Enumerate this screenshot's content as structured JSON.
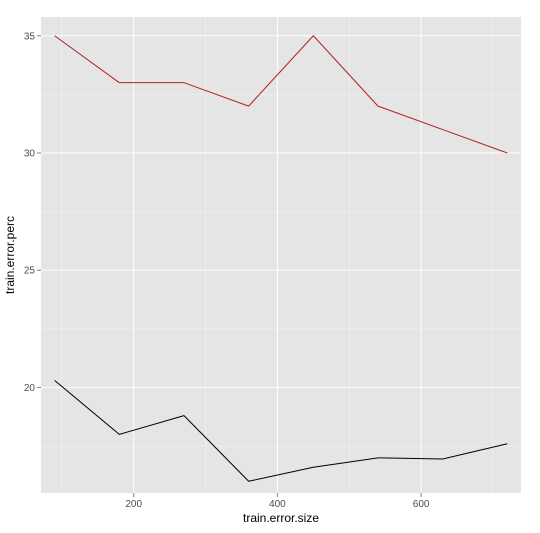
{
  "chart_data": {
    "type": "line",
    "title": "",
    "xlabel": "train.error.size",
    "ylabel": "train.error.perc",
    "xlim": [
      71,
      739
    ],
    "ylim": [
      15.5,
      35.8
    ],
    "x_ticks": [
      200,
      400,
      600
    ],
    "x_tick_labels": [
      "200",
      "400",
      "600"
    ],
    "y_ticks": [
      20,
      25,
      30,
      35
    ],
    "y_tick_labels": [
      "20",
      "25",
      "30",
      "35"
    ],
    "grid": true,
    "legend": "none",
    "background_color": "#e5e5e5",
    "grid_color": "#ffffff",
    "series": [
      {
        "color": "#b22222",
        "x": [
          90,
          180,
          270,
          360,
          450,
          540,
          630,
          720
        ],
        "y": [
          35,
          33,
          33,
          32,
          35,
          32,
          31,
          30
        ]
      },
      {
        "color": "#000000",
        "x": [
          90,
          180,
          270,
          360,
          450,
          540,
          630,
          720
        ],
        "y": [
          20.3,
          18.0,
          18.8,
          16.0,
          16.6,
          17.0,
          16.95,
          17.6
        ]
      }
    ]
  }
}
